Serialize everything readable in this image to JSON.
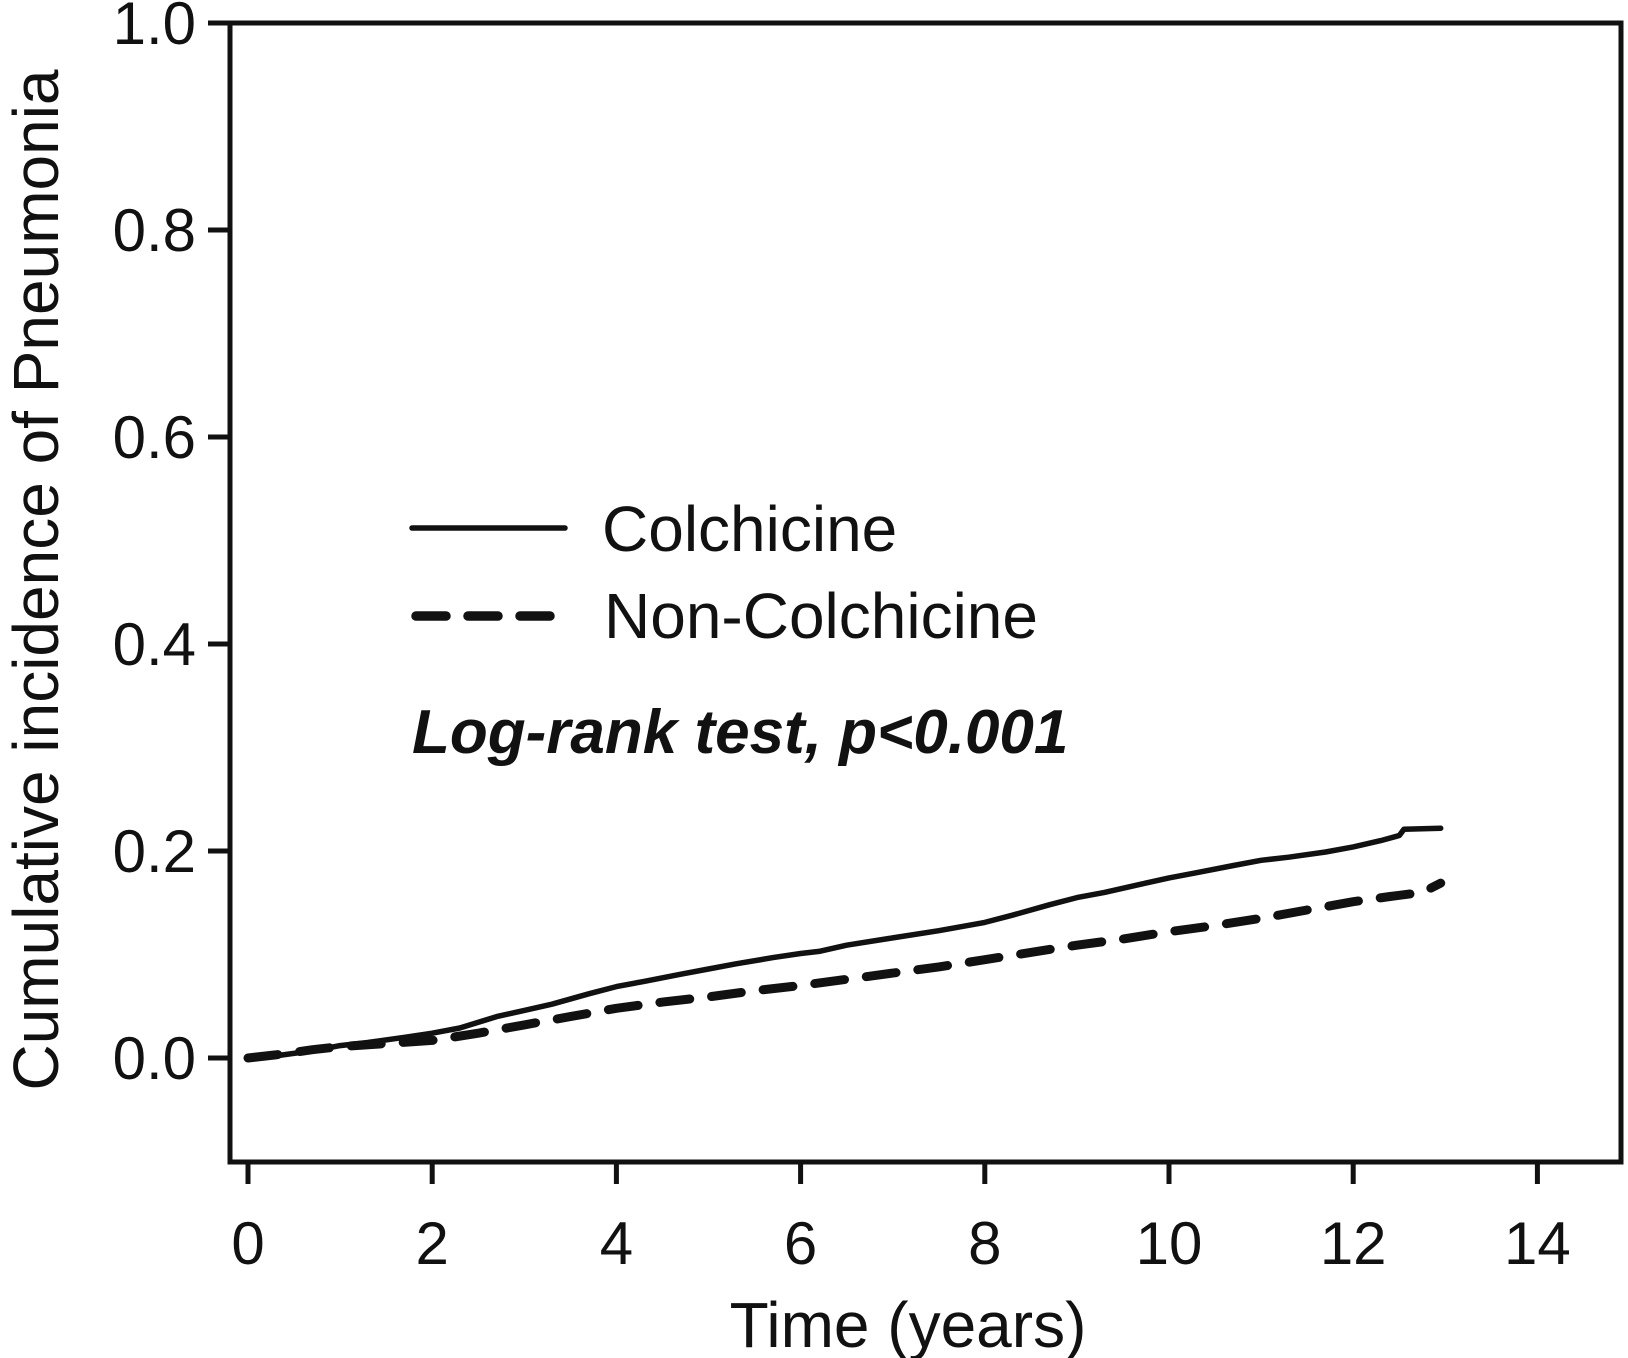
{
  "chart_data": {
    "type": "line",
    "title": "",
    "xlabel": "Time (years)",
    "ylabel": "Cumulative incidence of Pneumonia",
    "annotation": "Log-rank test, p<0.001",
    "xlim": [
      0,
      14.9
    ],
    "ylim": [
      0,
      1.0
    ],
    "xticks": [
      "0",
      "2",
      "4",
      "6",
      "8",
      "10",
      "12",
      "14"
    ],
    "yticks": [
      "0.0",
      "0.2",
      "0.4",
      "0.6",
      "0.8",
      "1.0"
    ],
    "grid": false,
    "legend_position": "inside-left-middle",
    "ink_color": "#111111",
    "background_color": "#ffffff",
    "legend": [
      {
        "name": "Colchicine",
        "style": "solid"
      },
      {
        "name": "Non-Colchicine",
        "style": "dashed"
      }
    ],
    "series": [
      {
        "name": "Colchicine",
        "line_style": "solid",
        "points": [
          [
            0,
            0.0
          ],
          [
            0.3,
            0.002
          ],
          [
            0.7,
            0.007
          ],
          [
            1,
            0.012
          ],
          [
            1.3,
            0.015
          ],
          [
            1.7,
            0.02
          ],
          [
            2,
            0.024
          ],
          [
            2.3,
            0.029
          ],
          [
            2.7,
            0.04
          ],
          [
            3,
            0.046
          ],
          [
            3.3,
            0.052
          ],
          [
            3.7,
            0.062
          ],
          [
            4,
            0.069
          ],
          [
            4.3,
            0.074
          ],
          [
            4.7,
            0.081
          ],
          [
            5,
            0.086
          ],
          [
            5.3,
            0.091
          ],
          [
            5.7,
            0.097
          ],
          [
            6,
            0.101
          ],
          [
            6.2,
            0.103
          ],
          [
            6.5,
            0.109
          ],
          [
            7,
            0.116
          ],
          [
            7.5,
            0.123
          ],
          [
            8,
            0.131
          ],
          [
            8.3,
            0.138
          ],
          [
            8.7,
            0.148
          ],
          [
            9,
            0.155
          ],
          [
            9.3,
            0.16
          ],
          [
            9.7,
            0.168
          ],
          [
            10,
            0.174
          ],
          [
            10.3,
            0.179
          ],
          [
            10.7,
            0.186
          ],
          [
            11,
            0.191
          ],
          [
            11.3,
            0.194
          ],
          [
            11.7,
            0.199
          ],
          [
            12,
            0.204
          ],
          [
            12.3,
            0.21
          ],
          [
            12.5,
            0.215
          ],
          [
            12.55,
            0.221
          ],
          [
            12.95,
            0.222
          ]
        ]
      },
      {
        "name": "Non-Colchicine",
        "line_style": "dashed",
        "points": [
          [
            0,
            0.0
          ],
          [
            0.3,
            0.003
          ],
          [
            0.7,
            0.008
          ],
          [
            1,
            0.011
          ],
          [
            1.5,
            0.014
          ],
          [
            2,
            0.017
          ],
          [
            2.5,
            0.024
          ],
          [
            3,
            0.032
          ],
          [
            3.5,
            0.04
          ],
          [
            4,
            0.048
          ],
          [
            4.5,
            0.054
          ],
          [
            5,
            0.059
          ],
          [
            5.5,
            0.065
          ],
          [
            6,
            0.07
          ],
          [
            6.5,
            0.076
          ],
          [
            7,
            0.082
          ],
          [
            7.5,
            0.088
          ],
          [
            8,
            0.095
          ],
          [
            8.5,
            0.102
          ],
          [
            9,
            0.109
          ],
          [
            9.5,
            0.115
          ],
          [
            10,
            0.122
          ],
          [
            10.5,
            0.128
          ],
          [
            11,
            0.135
          ],
          [
            11.5,
            0.143
          ],
          [
            12,
            0.151
          ],
          [
            12.4,
            0.156
          ],
          [
            12.75,
            0.16
          ],
          [
            12.95,
            0.169
          ]
        ]
      }
    ]
  }
}
